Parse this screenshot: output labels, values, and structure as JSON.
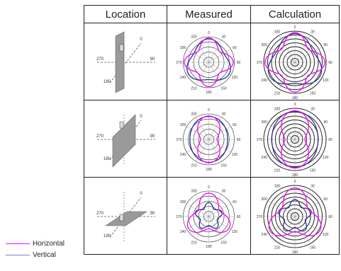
{
  "table": {
    "headers": [
      "Location",
      "Measured",
      "Calculation"
    ]
  },
  "location_labels": {
    "top": "0",
    "left": "270",
    "right": "90",
    "bottom": "180"
  },
  "polar_labels": [
    "0",
    "30",
    "60",
    "90",
    "120",
    "150",
    "180",
    "210",
    "240",
    "270",
    "300",
    "330"
  ],
  "legend": {
    "items": [
      {
        "label": "Horizontal",
        "color": "#ff00ff"
      },
      {
        "label": "Vertical",
        "color": "#7f7fd5"
      }
    ]
  },
  "colors": {
    "horizontal": "#ff00ff",
    "vertical_measured": "#1f2f8f",
    "vertical_calc": "#33338f",
    "grid": "#222222"
  }
}
